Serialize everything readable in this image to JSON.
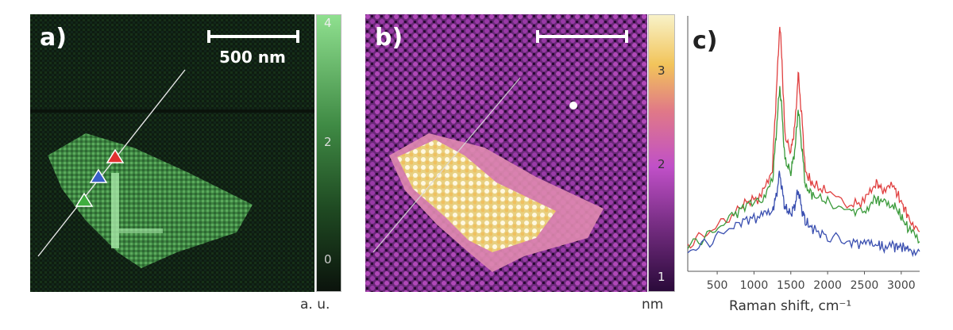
{
  "panel_a": {
    "label": "a)",
    "scalebar_label": "500 nm",
    "colorbar_ticks": [
      "4",
      "2",
      "0"
    ],
    "colorbar_unit": "a. u.",
    "colors": {
      "low": "#0c1a0e",
      "high": "#8fe08f"
    },
    "markers": [
      {
        "name": "red",
        "color": "#e03030"
      },
      {
        "name": "blue",
        "color": "#3a5fc8"
      },
      {
        "name": "green",
        "color": "#3fae3f"
      }
    ]
  },
  "panel_b": {
    "label": "b)",
    "colorbar_ticks": [
      "3",
      "2",
      "1"
    ],
    "colorbar_unit": "nm",
    "colors": {
      "low": "#2a0a3a",
      "mid": "#c050c8",
      "high": "#f6f0c0"
    }
  },
  "panel_c": {
    "label": "c)",
    "xlabel": "Raman shift, cm⁻¹"
  },
  "chart_data": {
    "type": "line",
    "title": "",
    "xlabel": "Raman shift, cm⁻¹",
    "ylabel": "",
    "xlim": [
      100,
      3250
    ],
    "ylim": [
      0,
      1
    ],
    "xticks": [
      "500",
      "1000",
      "1500",
      "2000",
      "2500",
      "3000"
    ],
    "grid": false,
    "series": [
      {
        "color": "#e04040",
        "x": [
          100,
          400,
          700,
          900,
          1100,
          1250,
          1300,
          1350,
          1380,
          1420,
          1500,
          1560,
          1600,
          1650,
          1700,
          1800,
          2000,
          2300,
          2500,
          2650,
          2750,
          2900,
          3000,
          3100,
          3250
        ],
        "y": [
          0.11,
          0.16,
          0.23,
          0.28,
          0.3,
          0.42,
          0.7,
          1.0,
          0.85,
          0.55,
          0.48,
          0.6,
          0.8,
          0.62,
          0.4,
          0.35,
          0.32,
          0.27,
          0.28,
          0.36,
          0.33,
          0.34,
          0.28,
          0.22,
          0.16
        ]
      },
      {
        "color": "#3a9a3a",
        "x": [
          100,
          400,
          700,
          900,
          1100,
          1250,
          1300,
          1350,
          1380,
          1420,
          1500,
          1560,
          1600,
          1650,
          1700,
          1800,
          2000,
          2300,
          2500,
          2650,
          2750,
          2900,
          3000,
          3100,
          3250
        ],
        "y": [
          0.1,
          0.15,
          0.22,
          0.27,
          0.29,
          0.36,
          0.55,
          0.75,
          0.64,
          0.45,
          0.4,
          0.5,
          0.66,
          0.5,
          0.34,
          0.31,
          0.28,
          0.24,
          0.25,
          0.29,
          0.28,
          0.27,
          0.22,
          0.17,
          0.12
        ]
      },
      {
        "color": "#3a4fb0",
        "x": [
          100,
          400,
          700,
          900,
          1100,
          1250,
          1300,
          1350,
          1380,
          1420,
          1500,
          1560,
          1600,
          1650,
          1700,
          1800,
          2000,
          2300,
          2500,
          2650,
          2750,
          2900,
          3000,
          3100,
          3250
        ],
        "y": [
          0.08,
          0.12,
          0.18,
          0.21,
          0.22,
          0.25,
          0.3,
          0.4,
          0.33,
          0.26,
          0.23,
          0.27,
          0.33,
          0.25,
          0.2,
          0.17,
          0.14,
          0.12,
          0.11,
          0.11,
          0.1,
          0.1,
          0.1,
          0.09,
          0.08
        ]
      }
    ]
  }
}
